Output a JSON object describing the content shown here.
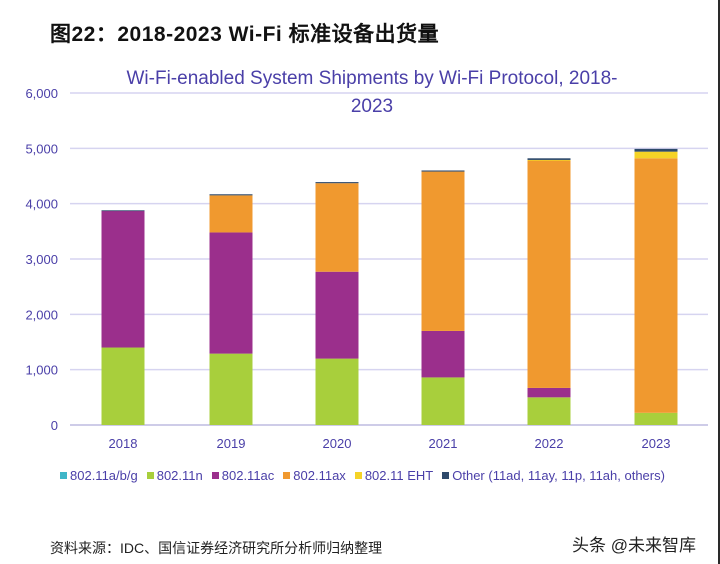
{
  "figure_title": "图22：2018-2023 Wi-Fi 标准设备出货量",
  "source_note": "资料来源：IDC、国信证券经济研究所分析师归纳整理",
  "watermark": "头条 @未来智库",
  "chart_data": {
    "type": "bar",
    "stacked": true,
    "title_line1": "Wi-Fi-enabled System Shipments by Wi-Fi Protocol, 2018-",
    "title_line2": "2023",
    "xlabel": "",
    "ylabel": "",
    "ylim": [
      0,
      6000
    ],
    "yticks": [
      "0",
      "1,000",
      "2,000",
      "3,000",
      "4,000",
      "5,000",
      "6,000"
    ],
    "ytick_values": [
      0,
      1000,
      2000,
      3000,
      4000,
      5000,
      6000
    ],
    "grid": true,
    "legend_position": "bottom",
    "categories": [
      "2018",
      "2019",
      "2020",
      "2021",
      "2022",
      "2023"
    ],
    "series": [
      {
        "name": "802.11a/b/g",
        "color": "#3fb6c8",
        "values": [
          0,
          0,
          0,
          0,
          0,
          0
        ]
      },
      {
        "name": "802.11n",
        "color": "#a8cf3c",
        "values": [
          1400,
          1290,
          1200,
          860,
          500,
          220
        ]
      },
      {
        "name": "802.11ac",
        "color": "#9b2f8c",
        "values": [
          2470,
          2190,
          1570,
          840,
          170,
          0
        ]
      },
      {
        "name": "802.11ax",
        "color": "#f0992f",
        "values": [
          0,
          670,
          1600,
          2880,
          4110,
          4600
        ]
      },
      {
        "name": "802.11 EHT",
        "color": "#f5d327",
        "values": [
          0,
          0,
          0,
          0,
          10,
          120
        ]
      },
      {
        "name": "Other (11ad, 11ay, 11p, 11ah, others)",
        "color": "#2e4a6b",
        "values": [
          10,
          20,
          20,
          20,
          30,
          50
        ]
      }
    ],
    "title_color": "#4a3fa8",
    "gridline_color": "#d6d4f0"
  }
}
